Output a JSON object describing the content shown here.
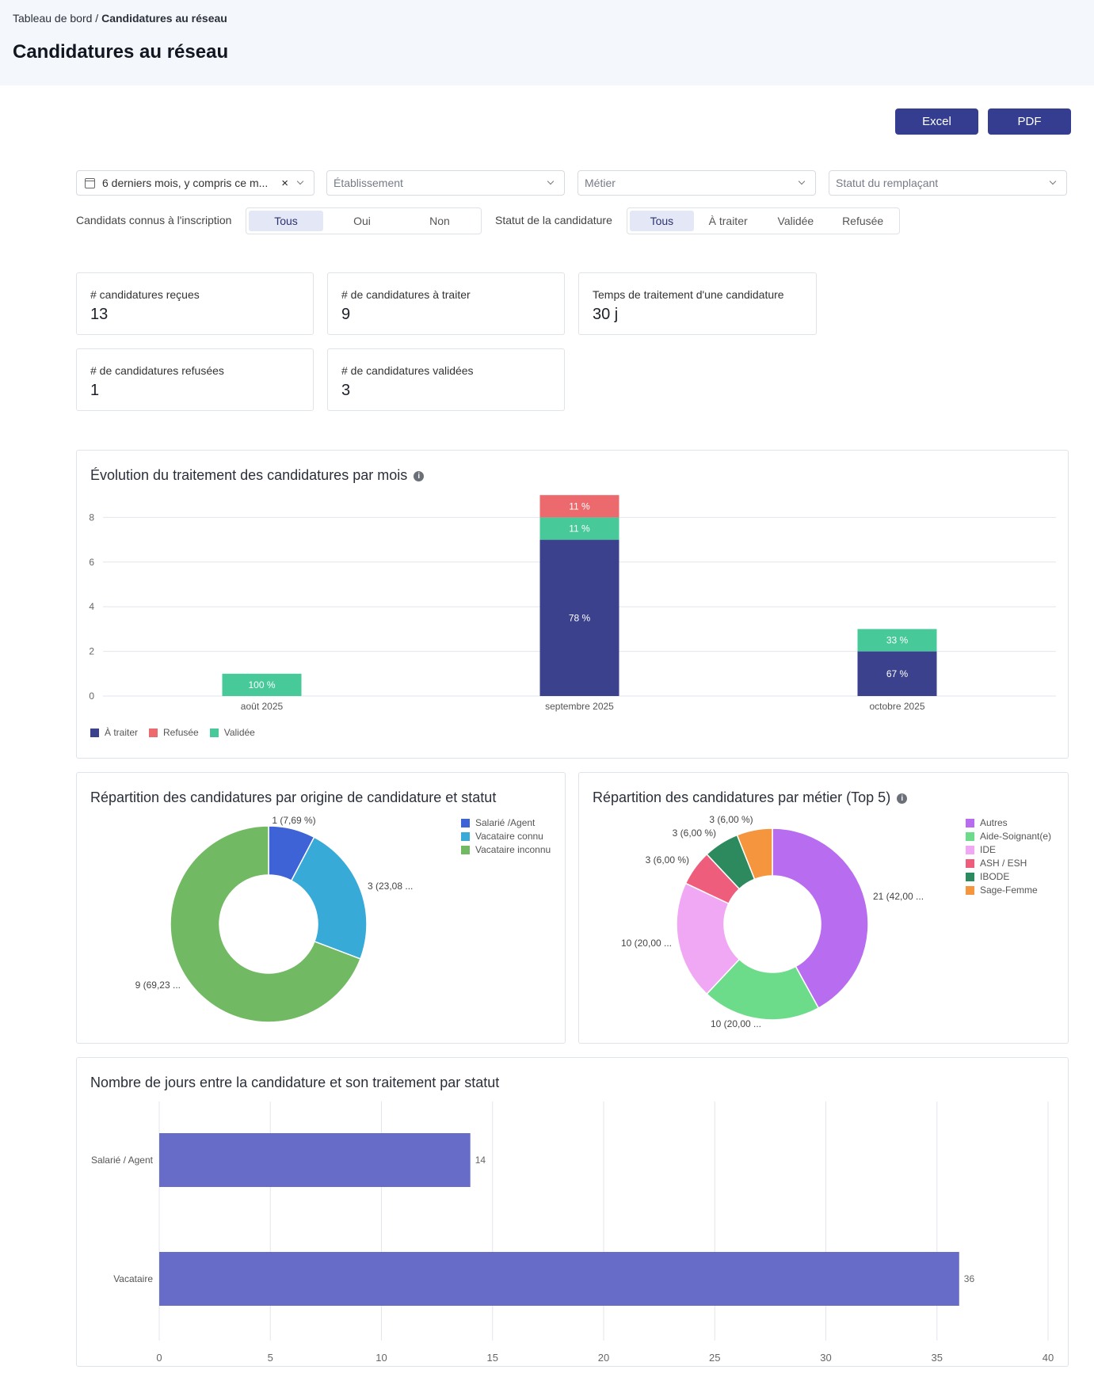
{
  "breadcrumb": {
    "parent": "Tableau de bord",
    "separator": " / ",
    "current": "Candidatures au réseau"
  },
  "page_title": "Candidatures au réseau",
  "actions": {
    "excel": "Excel",
    "pdf": "PDF"
  },
  "filters": {
    "period": {
      "value": "6 derniers mois, y compris ce m..."
    },
    "etablissement": {
      "placeholder": "Établissement"
    },
    "metier": {
      "placeholder": "Métier"
    },
    "statut_remplacant": {
      "placeholder": "Statut du remplaçant"
    },
    "candidats_connus": {
      "label": "Candidats connus à l'inscription",
      "options": [
        "Tous",
        "Oui",
        "Non"
      ],
      "selected": "Tous"
    },
    "statut_candidature": {
      "label": "Statut de la candidature",
      "options": [
        "Tous",
        "À traiter",
        "Validée",
        "Refusée"
      ],
      "selected": "Tous"
    }
  },
  "kpis": [
    {
      "label": "# candidatures reçues",
      "value": "13"
    },
    {
      "label": "# de candidatures à traiter",
      "value": "9"
    },
    {
      "label": "Temps de traitement d'une candidature",
      "value": "30 j"
    },
    {
      "label": "# de candidatures refusées",
      "value": "1"
    },
    {
      "label": "# de candidatures validées",
      "value": "3"
    }
  ],
  "colors": {
    "a_traiter": "#3b418c",
    "refusee": "#ec6a6e",
    "validee": "#47c99a",
    "salarie": "#3d63d6",
    "vacataire_connu": "#38aad8",
    "vacataire_inconnu": "#72b963",
    "autres": "#b86cf0",
    "aide_soignant": "#6ddc8a",
    "ide": "#f0a8f4",
    "ash": "#ef5d7d",
    "ibode": "#2c8a5e",
    "sage_femme": "#f5963e",
    "days_bar": "#666cc8"
  },
  "chart_data": [
    {
      "type": "bar",
      "stacked": true,
      "title": "Évolution du traitement des candidatures par mois",
      "categories": [
        "août 2025",
        "septembre 2025",
        "octobre 2025"
      ],
      "series": [
        {
          "name": "À traiter",
          "values": [
            0,
            7,
            2
          ],
          "labels": [
            "",
            "78 %",
            "67 %"
          ]
        },
        {
          "name": "Refusée",
          "values": [
            0,
            1,
            0
          ],
          "labels": [
            "",
            "11 %",
            ""
          ]
        },
        {
          "name": "Validée",
          "values": [
            1,
            1,
            1
          ],
          "labels": [
            "100 %",
            "11 %",
            "33 %"
          ]
        }
      ],
      "yticks": [
        0,
        2,
        4,
        6,
        8
      ],
      "ylim": [
        0,
        9
      ],
      "legend": "bottom-left"
    },
    {
      "type": "pie",
      "title": "Répartition des candidatures par origine de candidature et statut",
      "labels": [
        "Salarié /Agent",
        "Vacataire connu",
        "Vacataire inconnu"
      ],
      "values": [
        1,
        3,
        9
      ],
      "data_labels": [
        "1 (7,69 %)",
        "3 (23,08 ...",
        "9 (69,23 ..."
      ],
      "legend": "top-right"
    },
    {
      "type": "pie",
      "title": "Répartition des candidatures par métier (Top 5)",
      "labels": [
        "Autres",
        "Aide-Soignant(e)",
        "IDE",
        "ASH / ESH",
        "IBODE",
        "Sage-Femme"
      ],
      "values": [
        21,
        10,
        10,
        3,
        3,
        3
      ],
      "data_labels": [
        "21 (42,00 ...",
        "10 (20,00 ...",
        "10 (20,00 ...",
        "3 (6,00 %)",
        "3 (6,00 %)",
        "3 (6,00 %)"
      ],
      "legend": "top-right"
    },
    {
      "type": "bar",
      "orientation": "horizontal",
      "title": "Nombre de jours entre la candidature et son traitement par statut",
      "categories": [
        "Salarié / Agent",
        "Vacataire"
      ],
      "values": [
        14,
        36
      ],
      "data_labels": [
        "14",
        "36"
      ],
      "xticks": [
        0,
        5,
        10,
        15,
        20,
        25,
        30,
        35,
        40
      ],
      "xlim": [
        0,
        40
      ]
    }
  ]
}
